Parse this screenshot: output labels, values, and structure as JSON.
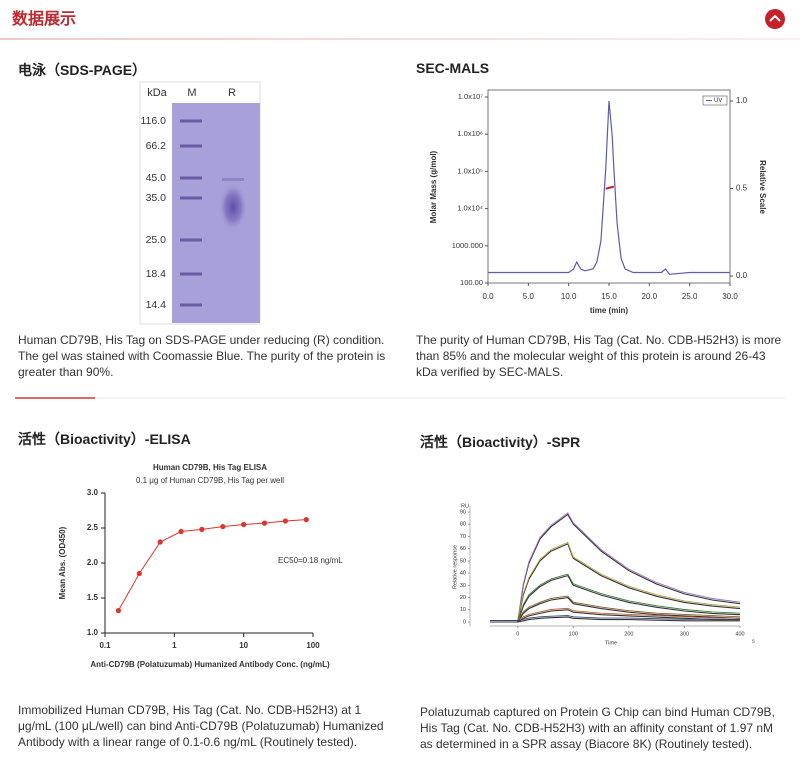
{
  "header": {
    "title": "数据展示"
  },
  "sds_page": {
    "title": "电泳（SDS-PAGE）",
    "unit": "kDa",
    "lanes": [
      "M",
      "R"
    ],
    "markers": [
      "116.0",
      "66.2",
      "45.0",
      "35.0",
      "25.0",
      "18.4",
      "14.4"
    ],
    "caption": "Human CD79B, His Tag on SDS-PAGE under reducing (R) condition. The gel was stained with Coomassie Blue. The purity of the protein is greater than 90%."
  },
  "sec_mals": {
    "title": "SEC-MALS",
    "caption": "The purity of Human CD79B, His Tag (Cat. No. CDB-H52H3) is more than 85% and the molecular weight of this protein is around 26-43 kDa verified by SEC-MALS.",
    "chart_data": {
      "type": "line",
      "xlabel": "time (min)",
      "ylabel": "Molar Mass (g/mol)",
      "y2label": "Relative Scale",
      "x": [
        0,
        5,
        10,
        10.6,
        11,
        11.5,
        12,
        13,
        13.5,
        14,
        14.5,
        14.6,
        15,
        15.4,
        15.6,
        16,
        16.5,
        17,
        18,
        20,
        21.5,
        22,
        22.5,
        25,
        30
      ],
      "series": [
        {
          "name": "UV",
          "color": "#5b5bb0",
          "axis": "y2",
          "values": [
            0.02,
            0.02,
            0.02,
            0.04,
            0.08,
            0.04,
            0.03,
            0.04,
            0.08,
            0.2,
            0.55,
            0.62,
            1.0,
            0.8,
            0.62,
            0.3,
            0.1,
            0.04,
            0.02,
            0.02,
            0.02,
            0.04,
            0.01,
            0.02,
            0.02
          ]
        },
        {
          "color": "#d02020",
          "values": [
            null,
            null,
            null,
            null,
            null,
            null,
            null,
            null,
            null,
            null,
            null,
            34000,
            36000,
            38000,
            39000,
            null,
            null,
            null,
            null,
            null,
            null,
            null,
            null,
            null,
            null
          ]
        }
      ],
      "legend": "upper right",
      "xlim": [
        0,
        30
      ],
      "xticks": [
        {
          "value": 0,
          "label": "0.0"
        },
        {
          "value": 5,
          "label": "5.0"
        },
        {
          "value": 10,
          "label": "10.0"
        },
        {
          "value": 15,
          "label": "15.0"
        },
        {
          "value": 20,
          "label": "20.0"
        },
        {
          "value": 25,
          "label": "25.0"
        },
        {
          "value": 30,
          "label": "30.0"
        }
      ],
      "ylog": true,
      "ylim": [
        100,
        10000000
      ],
      "yticks": [
        {
          "value": 10000000,
          "label": "1.0x10⁷"
        },
        {
          "value": 1000000,
          "label": "1.0x10⁶"
        },
        {
          "value": 100000,
          "label": "1.0x10⁵"
        },
        {
          "value": 10000,
          "label": "1.0x10⁴"
        },
        {
          "value": 1000,
          "label": "1000.000"
        },
        {
          "value": 100,
          "label": "100.00"
        }
      ],
      "y2lim": [
        0,
        1
      ],
      "y2ticks": [
        {
          "value": 0,
          "label": "0.0"
        },
        {
          "value": 0.5,
          "label": "0.5"
        },
        {
          "value": 1,
          "label": "1.0"
        }
      ]
    }
  },
  "elisa": {
    "title": "活性（Bioactivity）-ELISA",
    "caption": "Immobilized Human CD79B, His Tag (Cat. No. CDB-H52H3) at 1 μg/mL (100 μL/well) can bind Anti-CD79B (Polatuzumab) Humanized Antibody with a linear range of 0.1-0.6 ng/mL (Routinely tested).",
    "chart_data": {
      "type": "scatter",
      "title": "Human CD79B, His Tag ELISA",
      "subtitle": "0.1 μg of Human CD79B, His Tag per well",
      "xlabel": "Anti-CD79B (Polatuzumab) Humanized Antibody Conc. (ng/mL)",
      "ylabel": "Mean Abs. (OD450)",
      "annotation": "EC50=0.18 ng/mL",
      "x": [
        0.156,
        0.3125,
        0.625,
        1.25,
        2.5,
        5,
        10,
        20,
        40,
        80
      ],
      "values": [
        1.32,
        1.85,
        2.3,
        2.45,
        2.48,
        2.52,
        2.55,
        2.57,
        2.6,
        2.62
      ],
      "color": "#e0342c",
      "xlog": true,
      "xlim": [
        0.1,
        100
      ],
      "xticks": [
        0.1,
        1,
        10,
        100
      ],
      "ylim": [
        1,
        3
      ],
      "yticks": [
        {
          "value": 1,
          "label": "1.0"
        },
        {
          "value": 1.5,
          "label": "1.5"
        },
        {
          "value": 2,
          "label": "2.0"
        },
        {
          "value": 2.5,
          "label": "2.5"
        },
        {
          "value": 3,
          "label": "3.0"
        }
      ]
    }
  },
  "spr": {
    "title": "活性（Bioactivity）-SPR",
    "caption": "Polatuzumab captured on Protein G Chip can bind Human CD79B, His Tag (Cat. No. CDB-H52H3) with an affinity constant of 1.97 nM as determined in a SPR assay (Biacore 8K) (Routinely tested).",
    "chart_data": {
      "type": "line",
      "yunit": "RU",
      "ylabel": "Relative response",
      "xlabel": "Time",
      "xunit": "s",
      "x": [
        -50,
        0,
        10,
        20,
        40,
        60,
        90,
        100,
        150,
        200,
        250,
        300,
        350,
        400
      ],
      "series": [
        {
          "color": "#9a6fb5",
          "values": [
            0,
            0,
            30,
            48,
            68,
            78,
            88,
            80,
            58,
            42,
            31,
            23,
            18,
            15
          ]
        },
        {
          "color": "#b8a040",
          "values": [
            0,
            0,
            22,
            35,
            50,
            58,
            64,
            52,
            38,
            28,
            21,
            16,
            13,
            11
          ]
        },
        {
          "color": "#3a7d3a",
          "values": [
            0,
            0,
            13,
            21,
            29,
            34,
            38,
            30,
            22,
            16,
            12,
            9,
            7,
            6
          ]
        },
        {
          "color": "#8a5a2a",
          "values": [
            0,
            0,
            7,
            11,
            15,
            18,
            20,
            15,
            11,
            8,
            6,
            5,
            4,
            3
          ]
        },
        {
          "color": "#c06030",
          "values": [
            0,
            0,
            3,
            5,
            7,
            9,
            10,
            8,
            6,
            5,
            4,
            3,
            2,
            2
          ]
        },
        {
          "color": "#334477",
          "values": [
            0,
            0,
            1,
            2,
            3,
            3.5,
            4,
            3,
            2,
            2,
            1.5,
            1,
            1,
            1
          ]
        }
      ],
      "xlim": [
        -50,
        400
      ],
      "xticks": [
        0,
        100,
        200,
        300,
        400
      ],
      "ylim": [
        0,
        90
      ],
      "yticks": [
        0,
        10,
        20,
        30,
        40,
        50,
        60,
        70,
        80,
        90
      ]
    }
  }
}
